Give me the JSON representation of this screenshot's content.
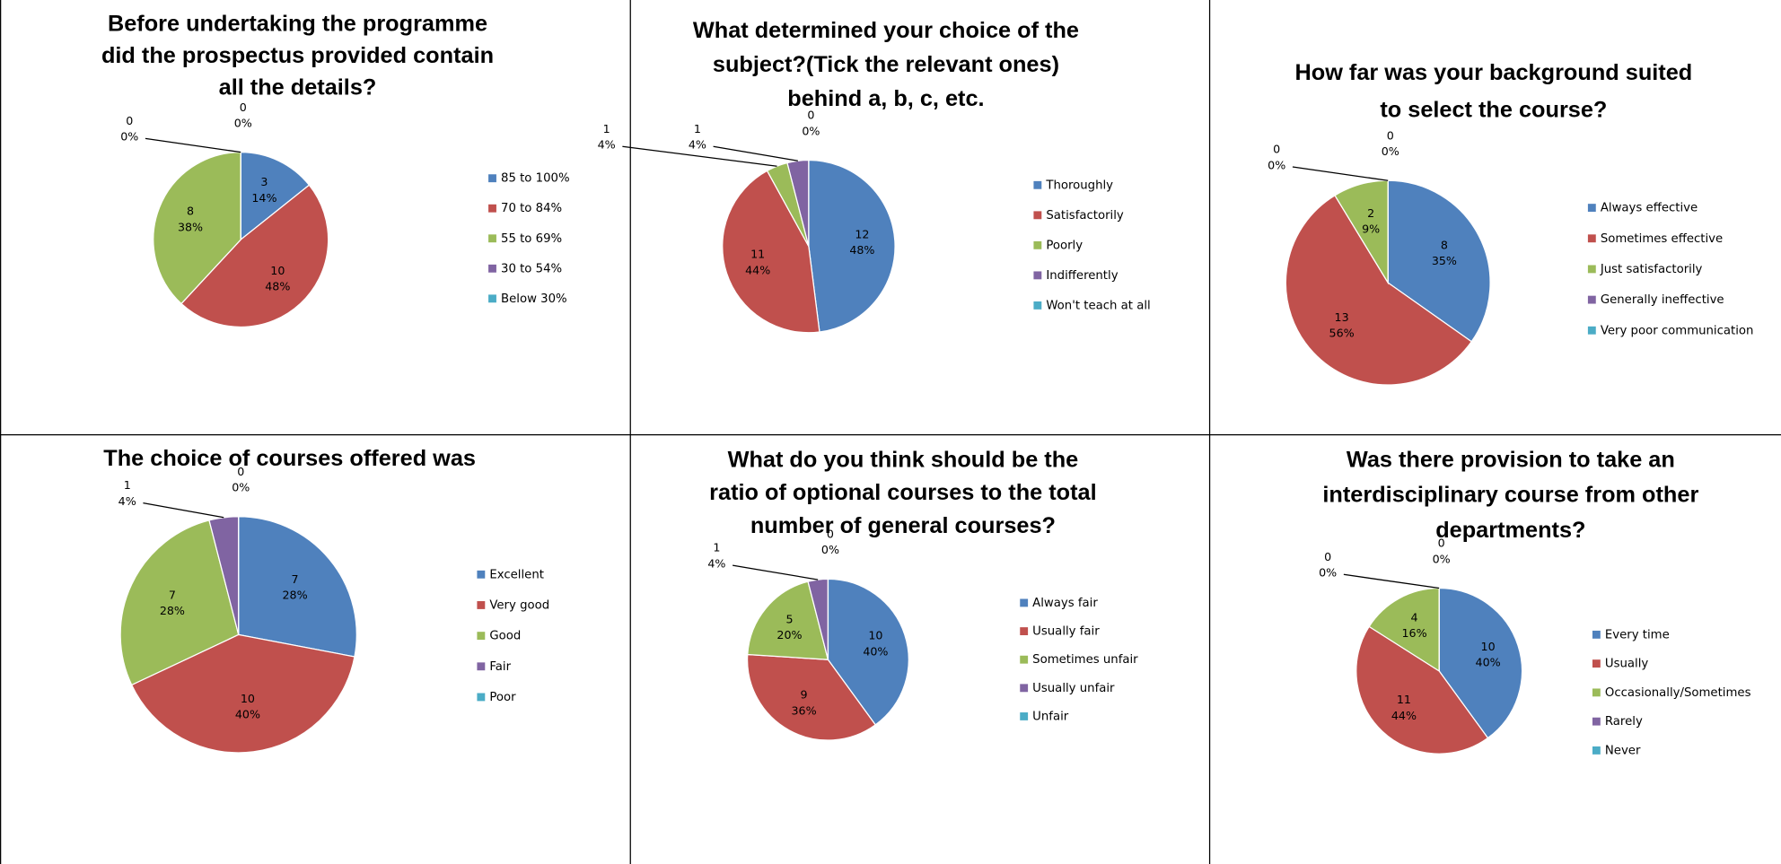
{
  "chart_data": [
    {
      "type": "pie",
      "title": [
        "Before undertaking the programme",
        "did the prospectus provided contain",
        "all the details?"
      ],
      "categories": [
        "85 to 100%",
        "70 to 84%",
        "55 to 69%",
        "30 to 54%",
        "Below 30%"
      ],
      "values": [
        3,
        10,
        8,
        0,
        0
      ],
      "percent_labels": [
        "14%",
        "48%",
        "38%",
        "0%",
        "0%"
      ],
      "colors": [
        "#4f81bd",
        "#c0504d",
        "#9bbb59",
        "#8064a2",
        "#4bacc6"
      ]
    },
    {
      "type": "pie",
      "title": [
        "What determined your choice of the",
        "subject?(Tick the relevant ones)",
        "behind a, b, c, etc."
      ],
      "categories": [
        "Thoroughly",
        "Satisfactorily",
        "Poorly",
        "Indifferently",
        "Won't teach at all"
      ],
      "values": [
        12,
        11,
        1,
        1,
        0
      ],
      "percent_labels": [
        "48%",
        "44%",
        "4%",
        "4%",
        "0%"
      ],
      "colors": [
        "#4f81bd",
        "#c0504d",
        "#9bbb59",
        "#8064a2",
        "#4bacc6"
      ]
    },
    {
      "type": "pie",
      "title": [
        "How far was your background suited",
        "to select the course?"
      ],
      "categories": [
        "Always effective",
        "Sometimes effective",
        "Just satisfactorily",
        "Generally ineffective",
        "Very poor communication"
      ],
      "values": [
        8,
        13,
        2,
        0,
        0
      ],
      "percent_labels": [
        "35%",
        "56%",
        "9%",
        "0%",
        "0%"
      ],
      "colors": [
        "#4f81bd",
        "#c0504d",
        "#9bbb59",
        "#8064a2",
        "#4bacc6"
      ]
    },
    {
      "type": "pie",
      "title": [
        "The choice of courses offered was"
      ],
      "categories": [
        "Excellent",
        "Very good",
        "Good",
        "Fair",
        "Poor"
      ],
      "values": [
        7,
        10,
        7,
        1,
        0
      ],
      "percent_labels": [
        "28%",
        "40%",
        "28%",
        "4%",
        "0%"
      ],
      "colors": [
        "#4f81bd",
        "#c0504d",
        "#9bbb59",
        "#8064a2",
        "#4bacc6"
      ]
    },
    {
      "type": "pie",
      "title": [
        "What do you think should be the",
        "ratio of optional courses to the total",
        "number of general courses?"
      ],
      "categories": [
        "Always fair",
        "Usually fair",
        "Sometimes unfair",
        "Usually unfair",
        "Unfair"
      ],
      "values": [
        10,
        9,
        5,
        1,
        0
      ],
      "percent_labels": [
        "40%",
        "36%",
        "20%",
        "4%",
        "0%"
      ],
      "colors": [
        "#4f81bd",
        "#c0504d",
        "#9bbb59",
        "#8064a2",
        "#4bacc6"
      ]
    },
    {
      "type": "pie",
      "title": [
        "Was there provision to take an",
        "interdisciplinary course from other",
        "departments?"
      ],
      "categories": [
        "Every time",
        "Usually",
        "Occasionally/Sometimes",
        "Rarely",
        "Never"
      ],
      "values": [
        10,
        11,
        4,
        0,
        0
      ],
      "percent_labels": [
        "40%",
        "44%",
        "16%",
        "0%",
        "0%"
      ],
      "colors": [
        "#4f81bd",
        "#c0504d",
        "#9bbb59",
        "#8064a2",
        "#4bacc6"
      ]
    }
  ]
}
